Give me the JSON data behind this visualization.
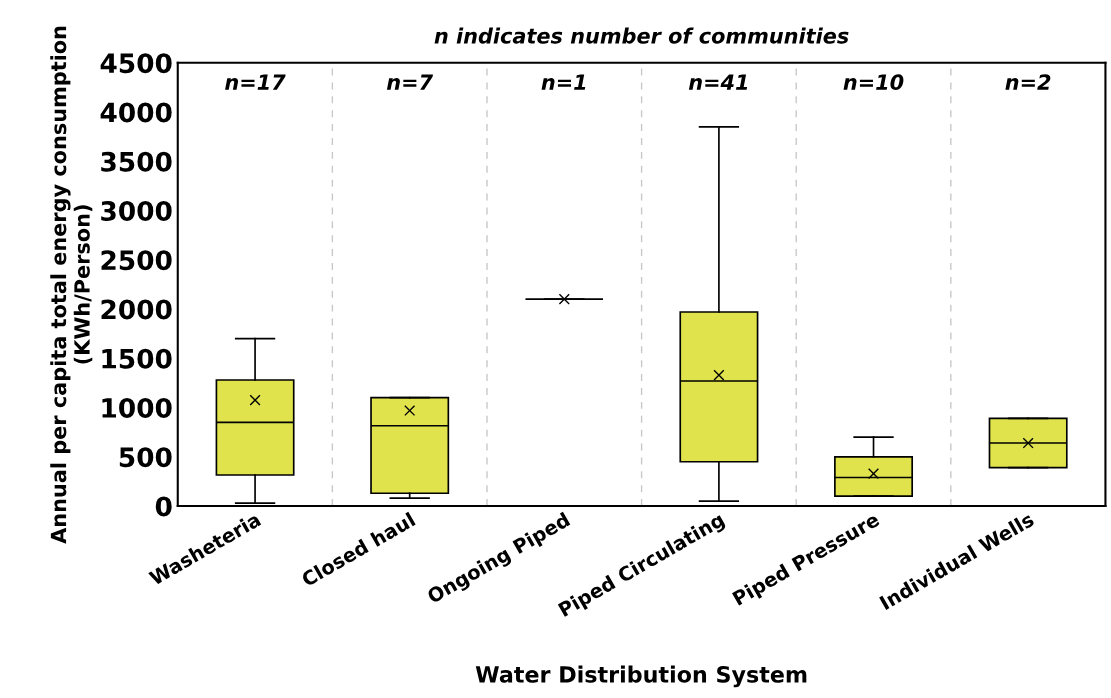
{
  "chart_data": {
    "type": "box",
    "title": "n indicates number of communities",
    "xlabel": "Water Distribution System",
    "ylabel": "Annual per capita total energy consumption (KWh/Person)",
    "categories": [
      "Washeteria",
      "Closed haul",
      "Ongoing Piped",
      "Piped Circulating",
      "Piped Pressure",
      "Individual Wells"
    ],
    "colors": [
      "#e0e34c",
      "#e0e34c",
      "#000000",
      "#e0e34c",
      "#e0e34c",
      "#e0e34c"
    ],
    "boxes": [
      {
        "low": 30,
        "q1": 315,
        "median": 850,
        "q3": 1280,
        "high": 1700,
        "mean": 1075
      },
      {
        "low": 80,
        "q1": 130,
        "median": 815,
        "q3": 1100,
        "high": 1100,
        "mean": 970
      },
      {
        "low": 2100,
        "q1": 2100,
        "median": 2100,
        "q3": 2100,
        "high": 2100,
        "mean": 2100
      },
      {
        "low": 50,
        "q1": 450,
        "median": 1270,
        "q3": 1970,
        "high": 3850,
        "mean": 1330
      },
      {
        "low": 100,
        "q1": 100,
        "median": 290,
        "q3": 500,
        "high": 700,
        "mean": 330
      },
      {
        "low": 390,
        "q1": 390,
        "median": 640,
        "q3": 890,
        "high": 890,
        "mean": 640
      }
    ],
    "annotations": [
      "n=17",
      "n=7",
      "n=1",
      "n=41",
      "n=10",
      "n=2"
    ],
    "ylim": [
      0,
      4500
    ],
    "yticks": [
      0,
      500,
      1000,
      1500,
      2000,
      2500,
      3000,
      3500,
      4000,
      4500
    ],
    "grid": "x",
    "marker": "cross"
  }
}
